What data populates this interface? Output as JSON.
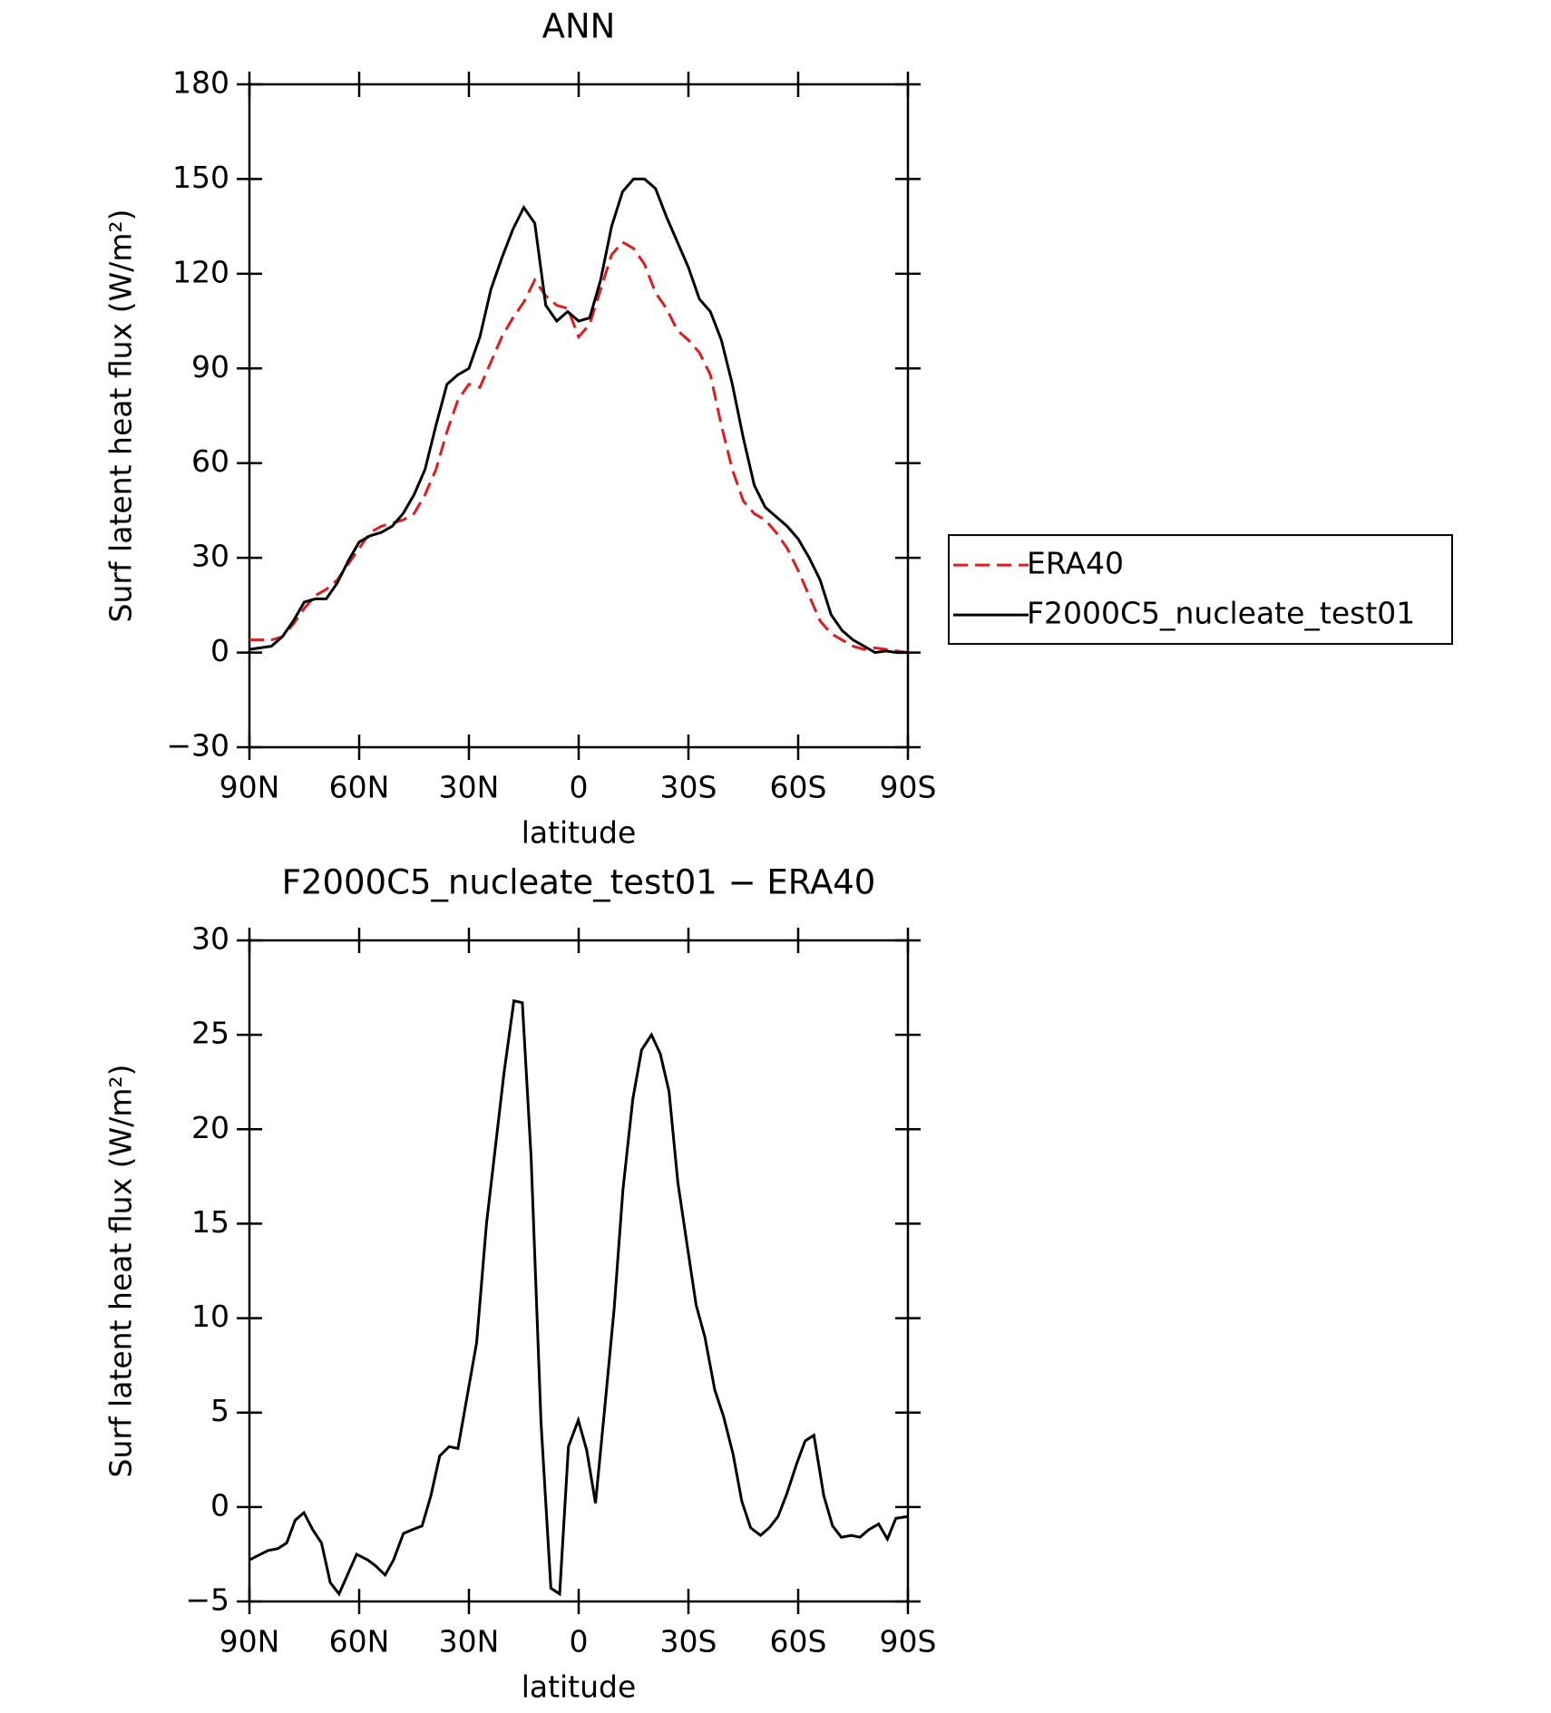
{
  "chart_data": [
    {
      "type": "line",
      "title": "ANN",
      "xlabel": "latitude",
      "ylabel": "Surf latent heat flux (W/m²)",
      "x": [
        90,
        87,
        84,
        81,
        78,
        75,
        72,
        69,
        66,
        63,
        60,
        57,
        54,
        51,
        48,
        45,
        42,
        39,
        36,
        33,
        30,
        27,
        24,
        21,
        18,
        15,
        12,
        9,
        6,
        3,
        0,
        -3,
        -6,
        -9,
        -12,
        -15,
        -18,
        -21,
        -24,
        -27,
        -30,
        -33,
        -36,
        -39,
        -42,
        -45,
        -48,
        -51,
        -54,
        -57,
        -60,
        -63,
        -66,
        -69,
        -72,
        -75,
        -78,
        -81,
        -84,
        -87,
        -90
      ],
      "series": [
        {
          "name": "ERA40",
          "color": "#e41a1c",
          "dashed": true,
          "values": [
            4,
            4,
            4,
            5,
            9,
            14,
            18,
            20,
            23,
            28,
            33,
            38,
            40,
            41,
            42,
            44,
            50,
            58,
            70,
            80,
            85,
            84,
            92,
            100,
            106,
            111,
            118,
            113,
            110,
            109,
            100,
            104,
            115,
            126,
            130,
            128,
            123,
            114,
            109,
            102,
            99,
            95,
            88,
            72,
            58,
            48,
            44,
            42,
            38,
            33,
            26,
            18,
            10,
            6,
            4,
            2,
            1,
            1.5,
            1,
            0.5,
            0
          ]
        },
        {
          "name": "F2000C5_nucleate_test01",
          "color": "#000000",
          "dashed": false,
          "values": [
            1,
            1.5,
            2,
            5,
            10,
            16,
            17,
            17,
            22,
            29,
            35,
            37,
            38,
            40,
            44,
            50,
            58,
            72,
            85,
            88,
            90,
            100,
            115,
            125,
            134,
            141,
            136,
            110,
            105,
            108,
            105,
            106,
            118,
            135,
            146,
            150,
            150,
            147,
            138,
            130,
            122,
            112,
            108,
            99,
            85,
            68,
            53,
            46,
            43,
            40,
            36,
            30,
            23,
            12,
            7,
            4,
            2,
            0,
            0.5,
            0,
            0
          ]
        }
      ],
      "xlim": [
        90,
        -90
      ],
      "xticks": [
        {
          "value": 90,
          "label": "90N"
        },
        {
          "value": 60,
          "label": "60N"
        },
        {
          "value": 30,
          "label": "30N"
        },
        0,
        {
          "value": -30,
          "label": "30S"
        },
        {
          "value": -60,
          "label": "60S"
        },
        {
          "value": -90,
          "label": "90S"
        }
      ],
      "ylim": [
        -30,
        180
      ],
      "yticks": [
        {
          "value": -30,
          "label": "−30"
        },
        0,
        30,
        60,
        90,
        120,
        150,
        180
      ],
      "legend": "right"
    },
    {
      "type": "line",
      "title": "F2000C5_nucleate_test01 − ERA40",
      "xlabel": "latitude",
      "ylabel": "Surf latent heat flux (W/m²)",
      "x": [
        90,
        84.9,
        82.2,
        79.8,
        77.5,
        75.1,
        72.7,
        70.3,
        67.9,
        65.5,
        60.7,
        57.7,
        55.6,
        52.9,
        50.6,
        47.9,
        45.5,
        42.8,
        40.4,
        38,
        35.4,
        33,
        27.9,
        25.2,
        22.8,
        20.4,
        17.7,
        15.4,
        13,
        10.3,
        7.6,
        5.2,
        2.8,
        0.1,
        -2.2,
        -4.6,
        -7,
        -9.7,
        -12.1,
        -14.8,
        -17.2,
        -19.9,
        -22.3,
        -24.7,
        -27.1,
        -29.7,
        -32.1,
        -34.5,
        -37.2,
        -39.6,
        -42.2,
        -44.6,
        -47,
        -49.7,
        -52.1,
        -54.5,
        -56.9,
        -59.6,
        -61.9,
        -64.3,
        -67,
        -69.4,
        -71.8,
        -74.5,
        -76.9,
        -79.3,
        -82,
        -84.4,
        -86.7,
        -90
      ],
      "series": [
        {
          "color": "#000000",
          "dashed": false,
          "values": [
            -2.8,
            -2.3,
            -2.2,
            -1.9,
            -0.7,
            -0.3,
            -1.2,
            -1.9,
            -4,
            -4.6,
            -2.5,
            -2.8,
            -3.1,
            -3.6,
            -2.8,
            -1.4,
            -1.2,
            -1,
            0.6,
            2.7,
            3.2,
            3.1,
            8.7,
            15,
            19,
            23,
            26.8,
            26.7,
            18.5,
            4.5,
            -4.3,
            -4.6,
            3.2,
            4.6,
            3,
            0.2,
            5,
            10.5,
            16.8,
            21.6,
            24.2,
            25,
            24,
            22,
            17.2,
            13.8,
            10.7,
            9,
            6.2,
            4.8,
            2.8,
            0.3,
            -1.1,
            -1.5,
            -1.1,
            -0.5,
            0.7,
            2.3,
            3.5,
            3.8,
            0.6,
            -1,
            -1.6,
            -1.5,
            -1.6,
            -1.2,
            -0.9,
            -1.7,
            -0.6,
            -0.5
          ]
        }
      ],
      "xlim": [
        90,
        -90
      ],
      "xticks": [
        {
          "value": 90,
          "label": "90N"
        },
        {
          "value": 60,
          "label": "60N"
        },
        {
          "value": 30,
          "label": "30N"
        },
        0,
        {
          "value": -30,
          "label": "30S"
        },
        {
          "value": -60,
          "label": "60S"
        },
        {
          "value": -90,
          "label": "90S"
        }
      ],
      "ylim": [
        -5,
        30
      ],
      "yticks": [
        {
          "value": -5,
          "label": "−5"
        },
        0,
        5,
        10,
        15,
        20,
        25,
        30
      ]
    }
  ]
}
